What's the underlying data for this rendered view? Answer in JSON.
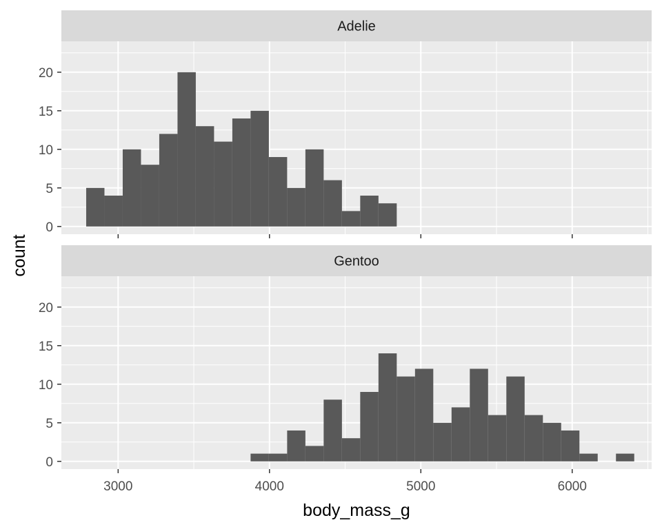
{
  "chart_data": {
    "type": "bar",
    "xlabel": "body_mass_g",
    "ylabel": "count",
    "xlim": [
      2625,
      6525
    ],
    "ylim": [
      -1,
      24
    ],
    "x_ticks": [
      3000,
      4000,
      5000,
      6000
    ],
    "x_tick_labels": [
      "3000",
      "4000",
      "5000",
      "6000"
    ],
    "y_ticks": [
      0,
      5,
      10,
      15,
      20
    ],
    "y_tick_labels": [
      "0",
      "5",
      "10",
      "15",
      "20"
    ],
    "grid": true,
    "bin_width": 120.7,
    "facets": [
      {
        "label": "Adelie",
        "bins": [
          {
            "x0": 2788.9,
            "x1": 2909.6,
            "count": 5
          },
          {
            "x0": 2909.6,
            "x1": 3030.3,
            "count": 4
          },
          {
            "x0": 3030.3,
            "x1": 3151.0,
            "count": 10
          },
          {
            "x0": 3151.0,
            "x1": 3271.7,
            "count": 8
          },
          {
            "x0": 3271.7,
            "x1": 3392.4,
            "count": 12
          },
          {
            "x0": 3392.4,
            "x1": 3513.1,
            "count": 20
          },
          {
            "x0": 3513.1,
            "x1": 3633.8,
            "count": 13
          },
          {
            "x0": 3633.8,
            "x1": 3754.5,
            "count": 11
          },
          {
            "x0": 3754.5,
            "x1": 3875.2,
            "count": 14
          },
          {
            "x0": 3875.2,
            "x1": 3995.9,
            "count": 15
          },
          {
            "x0": 3995.9,
            "x1": 4116.6,
            "count": 9
          },
          {
            "x0": 4116.6,
            "x1": 4237.3,
            "count": 5
          },
          {
            "x0": 4237.3,
            "x1": 4358.0,
            "count": 10
          },
          {
            "x0": 4358.0,
            "x1": 4478.7,
            "count": 6
          },
          {
            "x0": 4478.7,
            "x1": 4599.4,
            "count": 2
          },
          {
            "x0": 4599.4,
            "x1": 4720.1,
            "count": 4
          },
          {
            "x0": 4720.1,
            "x1": 4840.8,
            "count": 3
          }
        ]
      },
      {
        "label": "Gentoo",
        "bins": [
          {
            "x0": 3875.2,
            "x1": 3995.9,
            "count": 1
          },
          {
            "x0": 3995.9,
            "x1": 4116.6,
            "count": 1
          },
          {
            "x0": 4116.6,
            "x1": 4237.3,
            "count": 4
          },
          {
            "x0": 4237.3,
            "x1": 4358.0,
            "count": 2
          },
          {
            "x0": 4358.0,
            "x1": 4478.7,
            "count": 8
          },
          {
            "x0": 4478.7,
            "x1": 4599.4,
            "count": 3
          },
          {
            "x0": 4599.4,
            "x1": 4720.1,
            "count": 9
          },
          {
            "x0": 4720.1,
            "x1": 4840.8,
            "count": 14
          },
          {
            "x0": 4840.8,
            "x1": 4961.5,
            "count": 11
          },
          {
            "x0": 4961.5,
            "x1": 5082.2,
            "count": 12
          },
          {
            "x0": 5082.2,
            "x1": 5202.9,
            "count": 5
          },
          {
            "x0": 5202.9,
            "x1": 5323.6,
            "count": 7
          },
          {
            "x0": 5323.6,
            "x1": 5444.3,
            "count": 12
          },
          {
            "x0": 5444.3,
            "x1": 5565.0,
            "count": 6
          },
          {
            "x0": 5565.0,
            "x1": 5685.7,
            "count": 11
          },
          {
            "x0": 5685.7,
            "x1": 5806.4,
            "count": 6
          },
          {
            "x0": 5806.4,
            "x1": 5927.1,
            "count": 5
          },
          {
            "x0": 5927.1,
            "x1": 6047.8,
            "count": 4
          },
          {
            "x0": 6047.8,
            "x1": 6168.5,
            "count": 1
          },
          {
            "x0": 6168.5,
            "x1": 6289.2,
            "count": 0
          },
          {
            "x0": 6289.2,
            "x1": 6409.9,
            "count": 1
          }
        ]
      }
    ],
    "colors": {
      "bar": "#595959",
      "panel_bg": "#ebebeb",
      "strip_bg": "#d9d9d9",
      "grid": "#ffffff",
      "tick_text": "#4d4d4d"
    }
  }
}
